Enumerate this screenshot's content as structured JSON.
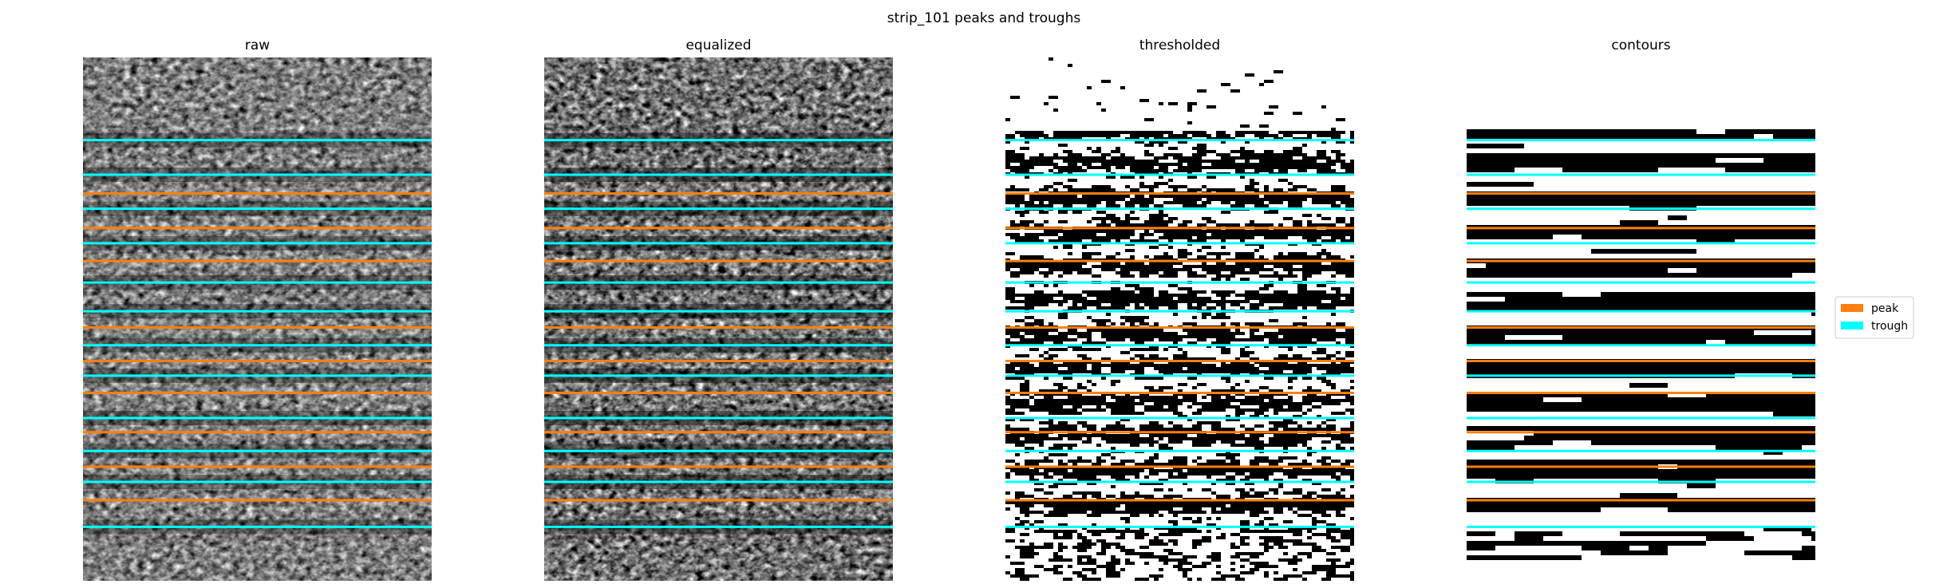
{
  "figure": {
    "title": "strip_101 peaks and troughs"
  },
  "colors": {
    "peak": "#ff7f0e",
    "trough": "#00ffff",
    "background": "#ffffff",
    "binary_on": "#000000",
    "legend_border": "#cccccc"
  },
  "chart_data": [
    {
      "type": "heatmap",
      "title": "raw",
      "variant": "noise_gray",
      "peaks": [
        0.26,
        0.326,
        0.389,
        0.516,
        0.58,
        0.641,
        0.716,
        0.782,
        0.846
      ],
      "troughs": [
        0.158,
        0.224,
        0.289,
        0.355,
        0.43,
        0.485,
        0.55,
        0.608,
        0.689,
        0.752,
        0.811,
        0.897
      ]
    },
    {
      "type": "heatmap",
      "title": "equalized",
      "variant": "noise_gray",
      "peaks": [
        0.26,
        0.326,
        0.389,
        0.516,
        0.58,
        0.641,
        0.716,
        0.782,
        0.846
      ],
      "troughs": [
        0.158,
        0.224,
        0.289,
        0.355,
        0.43,
        0.485,
        0.55,
        0.608,
        0.689,
        0.752,
        0.811,
        0.897
      ]
    },
    {
      "type": "heatmap",
      "title": "thresholded",
      "variant": "binary_noisy",
      "peaks": [
        0.26,
        0.326,
        0.389,
        0.516,
        0.58,
        0.641,
        0.716,
        0.782,
        0.846
      ],
      "troughs": [
        0.158,
        0.224,
        0.289,
        0.355,
        0.43,
        0.485,
        0.55,
        0.608,
        0.689,
        0.752,
        0.811,
        0.897
      ]
    },
    {
      "type": "heatmap",
      "title": "contours",
      "variant": "binary_smooth",
      "peaks": [
        0.26,
        0.326,
        0.389,
        0.516,
        0.58,
        0.641,
        0.716,
        0.782,
        0.846
      ],
      "troughs": [
        0.158,
        0.224,
        0.289,
        0.355,
        0.43,
        0.485,
        0.55,
        0.608,
        0.689,
        0.752,
        0.811,
        0.897
      ]
    }
  ],
  "legend": {
    "placement": "right",
    "items": [
      {
        "label": "peak",
        "color": "#ff7f0e"
      },
      {
        "label": "trough",
        "color": "#00ffff"
      }
    ]
  }
}
